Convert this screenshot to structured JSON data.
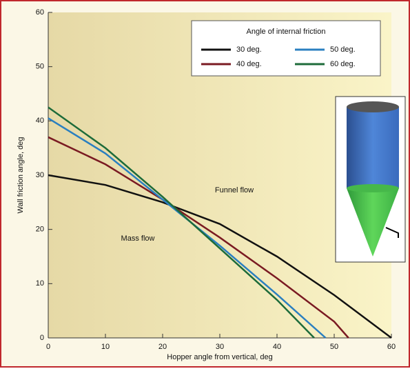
{
  "chart_data": {
    "type": "line",
    "x_label": "Hopper angle from vertical, deg",
    "y_label": "Wall friction angle, deg",
    "legend_title": "Angle of internal friction",
    "annotations": [
      "Funnel flow",
      "Mass flow"
    ],
    "series": [
      {
        "name": "30 deg.",
        "color": "#111111",
        "x": [
          0,
          10,
          20,
          30,
          40,
          50,
          60
        ],
        "values": [
          30,
          28.2,
          25,
          21,
          15,
          7.9,
          0
        ]
      },
      {
        "name": "40 deg.",
        "color": "#7a1a22",
        "x": [
          0,
          10,
          20,
          30,
          40,
          50,
          52.5
        ],
        "values": [
          37,
          32,
          25.5,
          18.5,
          11,
          3,
          0
        ]
      },
      {
        "name": "50 deg.",
        "color": "#2a7fc0",
        "x": [
          0,
          10,
          20,
          30,
          40,
          48.5
        ],
        "values": [
          40.5,
          34,
          25.5,
          17,
          8,
          0
        ]
      },
      {
        "name": "60 deg.",
        "color": "#1d6b3a",
        "x": [
          0,
          10,
          20,
          30,
          40,
          46.5
        ],
        "values": [
          42.5,
          35,
          26,
          16.5,
          7,
          0
        ]
      }
    ],
    "xlim": [
      0,
      60
    ],
    "xticks": [
      0,
      10,
      20,
      30,
      40,
      50,
      60
    ],
    "ylim": [
      0,
      60
    ],
    "yticks": [
      0,
      10,
      20,
      30,
      40,
      50,
      60
    ]
  }
}
